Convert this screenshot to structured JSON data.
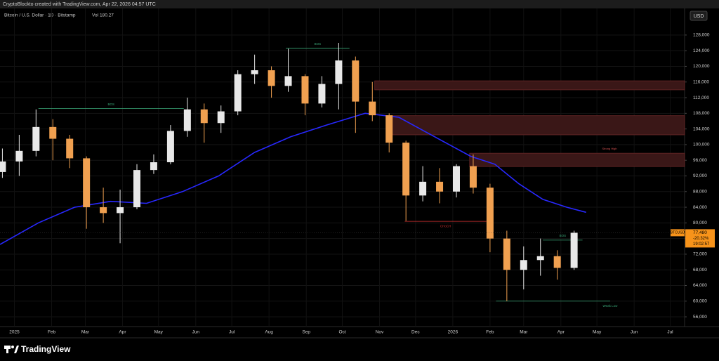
{
  "header": {
    "credit": "CryptoBlockto created with TradingView.com, Apr 22, 2026 04:57 UTC",
    "symbol": "Bitcoin / U.S. Dollar · 1D · Bitstamp",
    "volume_label": "Vol",
    "volume": "180.27",
    "currency": "USD"
  },
  "footer": {
    "brand": "TradingView"
  },
  "chart_data": {
    "type": "candlestick",
    "x": [
      -10,
      4,
      18,
      32,
      46,
      60,
      74,
      88,
      102,
      116,
      130,
      144,
      158,
      172,
      186,
      200,
      214,
      228,
      242,
      256,
      270,
      284,
      298,
      312,
      326,
      340,
      354,
      368,
      382,
      396,
      410,
      424,
      438,
      452,
      466
    ],
    "open": [
      93000,
      95700,
      98400,
      104500,
      101500,
      96500,
      84000,
      82500,
      84000,
      93500,
      95500,
      103500,
      109000,
      105500,
      108500,
      118000,
      119000,
      115000,
      117500,
      110500,
      115500,
      121500,
      111000,
      107500,
      100500,
      87000,
      90500,
      88000,
      94500,
      89000,
      76000,
      68000,
      70500,
      71500,
      68500
    ],
    "high": [
      99000,
      102500,
      109000,
      106500,
      102500,
      97000,
      89000,
      88500,
      95000,
      97500,
      105000,
      112000,
      110500,
      110000,
      119000,
      123000,
      120000,
      124500,
      118000,
      117500,
      126000,
      122500,
      116000,
      108000,
      101000,
      94500,
      94000,
      95000,
      97500,
      90000,
      78000,
      74000,
      76000,
      73000,
      78000
    ],
    "low": [
      91500,
      92000,
      97000,
      96000,
      94000,
      78500,
      80000,
      74800,
      83500,
      92500,
      95000,
      102000,
      100500,
      103000,
      107500,
      115500,
      112000,
      113500,
      107500,
      109500,
      109000,
      103000,
      106000,
      98000,
      80500,
      85500,
      85000,
      86500,
      87500,
      72500,
      60000,
      63000,
      66500,
      65500,
      68000
    ],
    "close": [
      95700,
      98400,
      104500,
      101500,
      96500,
      84000,
      82500,
      84000,
      93500,
      95500,
      103500,
      109000,
      105500,
      108500,
      118000,
      119000,
      115000,
      117500,
      110500,
      115500,
      121500,
      111000,
      107500,
      100500,
      87000,
      90500,
      88000,
      94500,
      89000,
      76000,
      68000,
      70500,
      71500,
      68500,
      77480
    ],
    "up_color": "#e8e8e8",
    "down_color": "#f0a050",
    "ma": {
      "color": "#2828ff",
      "x": [
        -12,
        20,
        50,
        80,
        110,
        140,
        170,
        200,
        230,
        260,
        292,
        320,
        350,
        380,
        400,
        420,
        440,
        460,
        476
      ],
      "values": [
        74500,
        80000,
        84000,
        85500,
        85000,
        88000,
        92000,
        98000,
        102000,
        105000,
        108000,
        107000,
        102000,
        97000,
        95000,
        90000,
        86000,
        84000,
        82700
      ]
    },
    "zones": [
      {
        "x0": 300,
        "low": 114000,
        "high": 116300,
        "color": "#3a1717"
      },
      {
        "x0": 313,
        "low": 102500,
        "high": 107400,
        "color": "#3a1717"
      },
      {
        "x0": 379,
        "low": 94400,
        "high": 97800,
        "color": "#3a1717",
        "label": "Strong High"
      }
    ],
    "structure": [
      {
        "label": "BOS",
        "x0": 20,
        "x1": 141,
        "price": 109200,
        "color": "#3aa878"
      },
      {
        "label": "BOS",
        "x0": 226,
        "x1": 279,
        "price": 124600,
        "color": "#3aa878"
      },
      {
        "label": "CHoCH",
        "x0": 325,
        "x1": 393,
        "price": 80400,
        "color": "#d03030"
      },
      {
        "label": "BOS",
        "x0": 440,
        "x1": 473,
        "price": 75600,
        "color": "#3aa878"
      },
      {
        "label": "Weak Low",
        "x0": 401,
        "x1": 496,
        "price": 60000,
        "color": "#3aa878"
      }
    ],
    "last": {
      "symbol": "BTCUSD",
      "value": 77480,
      "label": "77,480",
      "change": "-20.32%",
      "countdown": "19:02:57",
      "color": "#f7931a"
    },
    "xlim": [
      -12,
      558
    ],
    "xticks": [
      {
        "value": 0,
        "label": "2025"
      },
      {
        "value": 31,
        "label": "Feb"
      },
      {
        "value": 59,
        "label": "Mar"
      },
      {
        "value": 90,
        "label": "Apr"
      },
      {
        "value": 120,
        "label": "May"
      },
      {
        "value": 151,
        "label": "Jun"
      },
      {
        "value": 181,
        "label": "Jul"
      },
      {
        "value": 212,
        "label": "Aug"
      },
      {
        "value": 243,
        "label": "Sep"
      },
      {
        "value": 273,
        "label": "Oct"
      },
      {
        "value": 304,
        "label": "Nov"
      },
      {
        "value": 334,
        "label": "Dec"
      },
      {
        "value": 365,
        "label": "2026"
      },
      {
        "value": 396,
        "label": "Feb"
      },
      {
        "value": 424,
        "label": "Mar"
      },
      {
        "value": 455,
        "label": "Apr"
      },
      {
        "value": 485,
        "label": "May"
      },
      {
        "value": 516,
        "label": "Jun"
      },
      {
        "value": 546,
        "label": "Jul"
      }
    ],
    "ylim": [
      53500,
      134800
    ],
    "yticks": [
      {
        "value": 56000,
        "label": "56,000"
      },
      {
        "value": 60000,
        "label": "60,000"
      },
      {
        "value": 64000,
        "label": "64,000"
      },
      {
        "value": 68000,
        "label": "68,000"
      },
      {
        "value": 72000,
        "label": "72,000"
      },
      {
        "value": 76000,
        "label": "76,000"
      },
      {
        "value": 80000,
        "label": "80,000"
      },
      {
        "value": 84000,
        "label": "84,000"
      },
      {
        "value": 88000,
        "label": "88,000"
      },
      {
        "value": 92000,
        "label": "92,000"
      },
      {
        "value": 96000,
        "label": "96,000"
      },
      {
        "value": 100000,
        "label": "100,000"
      },
      {
        "value": 104000,
        "label": "104,000"
      },
      {
        "value": 108000,
        "label": "108,000"
      },
      {
        "value": 112000,
        "label": "112,000"
      },
      {
        "value": 116000,
        "label": "116,000"
      },
      {
        "value": 120000,
        "label": "120,000"
      },
      {
        "value": 124000,
        "label": "124,000"
      },
      {
        "value": 128000,
        "label": "128,000"
      }
    ]
  }
}
